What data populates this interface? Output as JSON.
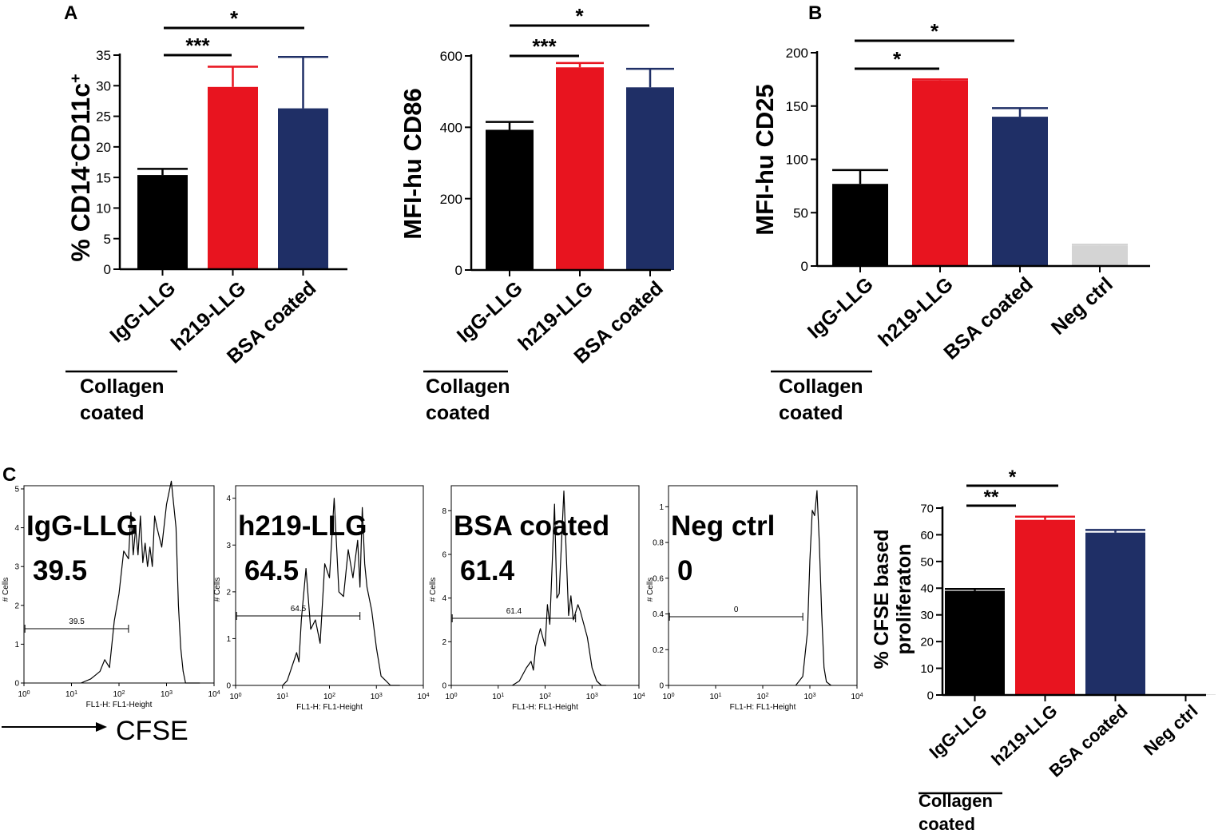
{
  "colors": {
    "black": "#000000",
    "red": "#e8141f",
    "blue": "#1f2f66",
    "gray": "#d4d4d4",
    "line": "#000000"
  },
  "panel_labels": {
    "a": "A",
    "b": "B",
    "c": "C"
  },
  "collagen_label": {
    "line1": "Collagen",
    "line2": "coated"
  },
  "cfse_label": "CFSE",
  "chart_data": [
    {
      "id": "cd14",
      "type": "bar",
      "panel": "A",
      "ylabel_main": "% CD14",
      "ylabel_sup1": "-",
      "ylabel_mid": "CD11c",
      "ylabel_sup2": "+",
      "ylim": [
        0,
        35
      ],
      "yticks": [
        "0",
        "5",
        "10",
        "15",
        "20",
        "25",
        "30",
        "35"
      ],
      "categories": [
        "IgG-LLG",
        "h219-LLG",
        "BSA coated"
      ],
      "values": [
        15.4,
        29.8,
        26.3
      ],
      "errors": [
        1.0,
        3.3,
        8.4
      ],
      "colors": [
        "black",
        "red",
        "blue"
      ],
      "significance": [
        {
          "from": 0,
          "to": 1,
          "label": "***"
        },
        {
          "from": 0,
          "to": 2,
          "label": "*"
        }
      ]
    },
    {
      "id": "cd86",
      "type": "bar",
      "panel": "A",
      "ylabel_main": "MFI-hu CD86",
      "ylim": [
        0,
        600
      ],
      "yticks": [
        "0",
        "200",
        "400",
        "600"
      ],
      "categories": [
        "IgG-LLG",
        "h219-LLG",
        "BSA coated"
      ],
      "values": [
        393,
        568,
        512
      ],
      "errors": [
        22,
        12,
        52
      ],
      "colors": [
        "black",
        "red",
        "blue"
      ],
      "significance": [
        {
          "from": 0,
          "to": 1,
          "label": "***"
        },
        {
          "from": 0,
          "to": 2,
          "label": "*"
        }
      ]
    },
    {
      "id": "cd25",
      "type": "bar",
      "panel": "B",
      "ylabel_main": "MFI-hu CD25",
      "ylim": [
        0,
        200
      ],
      "yticks": [
        "0",
        "50",
        "100",
        "150",
        "200"
      ],
      "categories": [
        "IgG-LLG",
        "h219-LLG",
        "BSA coated",
        "Neg ctrl"
      ],
      "values": [
        77,
        174,
        140,
        19
      ],
      "errors": [
        13,
        1,
        8,
        1
      ],
      "colors": [
        "black",
        "red",
        "blue",
        "gray"
      ],
      "significance": [
        {
          "from": 0,
          "to": 1,
          "label": "*"
        },
        {
          "from": 0,
          "to": 2,
          "label": "*"
        }
      ]
    },
    {
      "id": "prolif",
      "type": "bar",
      "panel": "C",
      "ylabel_main": "% CFSE based",
      "ylabel_line2": "proliferaton",
      "ylim": [
        0,
        70
      ],
      "yticks": [
        "0",
        "10",
        "20",
        "30",
        "40",
        "50",
        "60",
        "70"
      ],
      "categories": [
        "IgG-LLG",
        "h219-LLG",
        "BSA coated",
        "Neg ctrl"
      ],
      "values": [
        39.0,
        65.6,
        60.8,
        0.2
      ],
      "errors": [
        0.7,
        1.2,
        1.0,
        0
      ],
      "colors": [
        "black",
        "red",
        "blue",
        "gray"
      ],
      "significance": [
        {
          "from": 0,
          "to": 1,
          "label": "**"
        },
        {
          "from": 0,
          "to": 2,
          "label": "*"
        }
      ]
    },
    {
      "id": "h1",
      "type": "line",
      "subtype": "histogram",
      "panel": "C",
      "title": "IgG-LLG",
      "value_label": "39.5",
      "gate_label": "39.5",
      "gate_range_log": [
        0.02,
        2.2
      ],
      "ylabel": "# Cells",
      "xlabel": "FL1-H: FL1-Height",
      "ymax": 5,
      "yticks": [
        "0",
        "1",
        "2",
        "3",
        "4",
        "5"
      ],
      "ytick_values": [
        0,
        1,
        2,
        3,
        4,
        5
      ],
      "xticks": [
        {
          "b": "10",
          "e": "0"
        },
        {
          "b": "10",
          "e": "1"
        },
        {
          "b": "10",
          "e": "2"
        },
        {
          "b": "10",
          "e": "3"
        },
        {
          "b": "10",
          "e": "4"
        }
      ],
      "x": [
        1.2,
        1.4,
        1.5,
        1.6,
        1.7,
        1.8,
        1.9,
        2.0,
        2.1,
        2.2,
        2.25,
        2.3,
        2.35,
        2.4,
        2.45,
        2.5,
        2.55,
        2.6,
        2.65,
        2.7,
        2.75,
        2.8,
        2.9,
        3.0,
        3.1,
        3.2,
        3.25,
        3.3,
        3.35,
        3.4,
        3.5,
        3.6,
        3.7
      ],
      "y": [
        0,
        0.1,
        0.2,
        0.3,
        0.6,
        0.4,
        1.6,
        2.3,
        3.4,
        3.2,
        4.4,
        3.3,
        4.0,
        3.3,
        4.3,
        3.1,
        3.6,
        3.0,
        3.5,
        3.0,
        4.3,
        4.0,
        3.5,
        4.6,
        5.2,
        4.0,
        2.0,
        0.9,
        0.3,
        0,
        0,
        0,
        0
      ]
    },
    {
      "id": "h2",
      "type": "line",
      "subtype": "histogram",
      "panel": "C",
      "title": "h219-LLG",
      "value_label": "64.5",
      "gate_label": "64.5",
      "gate_range_log": [
        0.02,
        2.65
      ],
      "ylabel": "# Cells",
      "xlabel": "FL1-H: FL1-Height",
      "ymax": 4.2,
      "yticks": [
        "0",
        "1",
        "2",
        "3",
        "4"
      ],
      "ytick_values": [
        0,
        1,
        2,
        3,
        4
      ],
      "xticks": [
        {
          "b": "10",
          "e": "0"
        },
        {
          "b": "10",
          "e": "1"
        },
        {
          "b": "10",
          "e": "2"
        },
        {
          "b": "10",
          "e": "3"
        },
        {
          "b": "10",
          "e": "4"
        }
      ],
      "x": [
        1.0,
        1.1,
        1.2,
        1.3,
        1.35,
        1.4,
        1.5,
        1.6,
        1.7,
        1.8,
        1.9,
        2.0,
        2.1,
        2.2,
        2.3,
        2.4,
        2.5,
        2.6,
        2.65,
        2.7,
        2.75,
        2.8,
        2.9,
        3.0,
        3.05,
        3.1,
        3.2,
        3.3,
        3.4,
        3.5
      ],
      "y": [
        0,
        0.1,
        0.4,
        0.7,
        0.5,
        1.4,
        2.5,
        1.2,
        1.4,
        0.9,
        2.6,
        2.3,
        4.0,
        2.0,
        1.9,
        2.9,
        2.3,
        3.1,
        2.1,
        3.8,
        2.6,
        2.1,
        1.6,
        0.8,
        0.5,
        0.2,
        0.1,
        0,
        0,
        0
      ]
    },
    {
      "id": "h3",
      "type": "line",
      "subtype": "histogram",
      "panel": "C",
      "title": "BSA coated",
      "value_label": "61.4",
      "gate_label": "61.4",
      "gate_range_log": [
        0.02,
        2.65
      ],
      "ylabel": "# Cells",
      "xlabel": "FL1-H: FL1-Height",
      "ymax": 9,
      "yticks": [
        "0",
        "2",
        "4",
        "6",
        "8"
      ],
      "ytick_values": [
        0,
        2,
        4,
        6,
        8
      ],
      "xticks": [
        {
          "b": "10",
          "e": "0"
        },
        {
          "b": "10",
          "e": "1"
        },
        {
          "b": "10",
          "e": "2"
        },
        {
          "b": "10",
          "e": "3"
        },
        {
          "b": "10",
          "e": "4"
        }
      ],
      "x": [
        1.3,
        1.45,
        1.6,
        1.7,
        1.75,
        1.8,
        1.9,
        2.0,
        2.05,
        2.1,
        2.2,
        2.25,
        2.3,
        2.4,
        2.5,
        2.55,
        2.6,
        2.7,
        2.75,
        2.8,
        2.9,
        3.0,
        3.1,
        3.2,
        3.3
      ],
      "y": [
        0,
        0.2,
        0.8,
        1.1,
        0.7,
        1.8,
        2.6,
        1.8,
        3.7,
        2.8,
        8.3,
        4.0,
        4.2,
        8.9,
        3.2,
        4.1,
        3.0,
        3.7,
        3.4,
        3.0,
        2.2,
        0.8,
        0.2,
        0,
        0
      ]
    },
    {
      "id": "h4",
      "type": "line",
      "subtype": "histogram",
      "panel": "C",
      "title": "Neg ctrl",
      "value_label": "0",
      "gate_label": "0",
      "gate_range_log": [
        0.02,
        2.85
      ],
      "ylabel": "# Cells",
      "xlabel": "FL1-H: FL1-Height",
      "ymax": 1.1,
      "yticks": [
        "0",
        "0.2",
        "0.4",
        "0.6",
        "0.8",
        "1"
      ],
      "ytick_values": [
        0,
        0.2,
        0.4,
        0.6,
        0.8,
        1.0
      ],
      "xticks": [
        {
          "b": "10",
          "e": "0"
        },
        {
          "b": "10",
          "e": "1"
        },
        {
          "b": "10",
          "e": "2"
        },
        {
          "b": "10",
          "e": "3"
        },
        {
          "b": "10",
          "e": "4"
        }
      ],
      "x": [
        2.7,
        2.85,
        2.95,
        3.0,
        3.05,
        3.1,
        3.15,
        3.2,
        3.25,
        3.3,
        3.35,
        3.45
      ],
      "y": [
        0,
        0.05,
        0.3,
        0.7,
        0.98,
        0.95,
        1.09,
        0.8,
        0.4,
        0.1,
        0.02,
        0
      ]
    }
  ]
}
